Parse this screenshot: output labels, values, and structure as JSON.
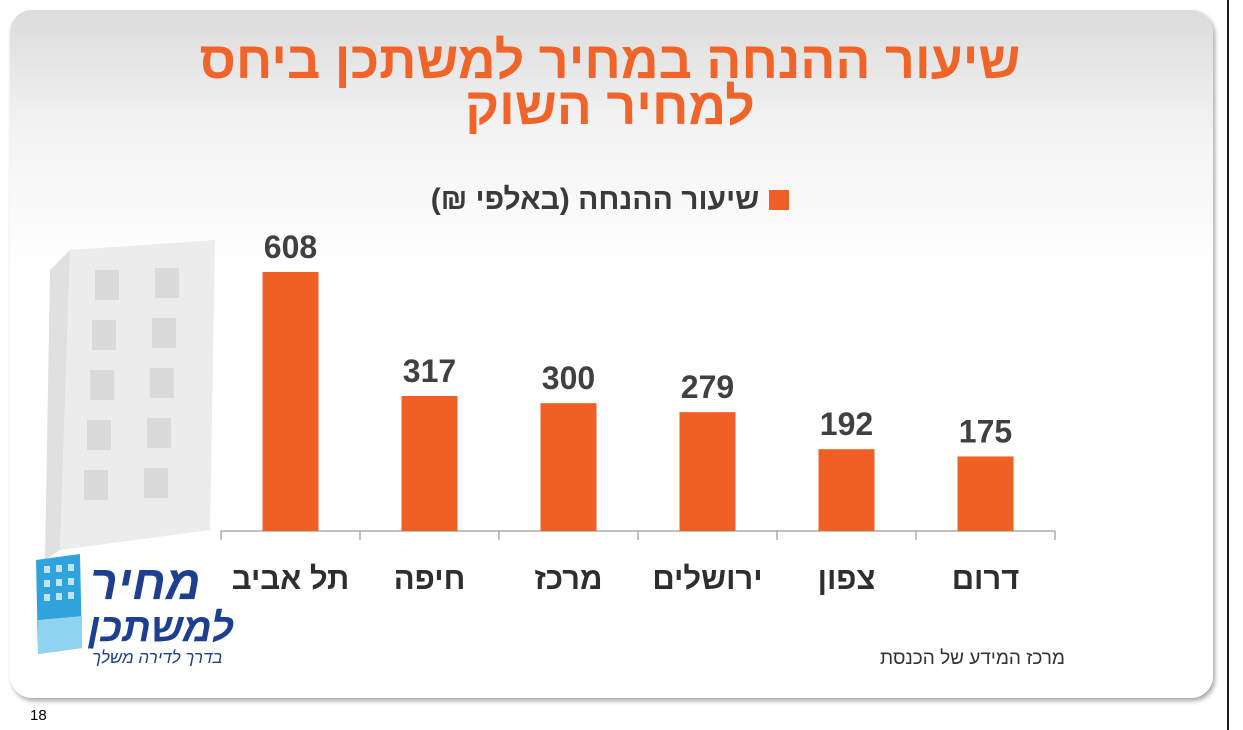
{
  "title_lines": [
    "שיעור ההנחה במחיר למשתכן ביחס",
    "למחיר השוק"
  ],
  "legend": {
    "label": "שיעור ההנחה (באלפי ₪)",
    "color": "#f05f24"
  },
  "source": "מרכז המידע של הכנסת",
  "page_number": "18",
  "logo": {
    "line1": "מחיר",
    "line2": "למשתכן",
    "tagline": "בדרך לדירה משלך"
  },
  "chart_data": {
    "type": "bar",
    "categories": [
      "תל אביב",
      "חיפה",
      "מרכז",
      "ירושלים",
      "צפון",
      "דרום"
    ],
    "series": [
      {
        "name": "שיעור ההנחה (באלפי ₪)",
        "values": [
          608,
          317,
          300,
          279,
          192,
          175
        ]
      }
    ],
    "ylim": [
      0,
      608
    ],
    "grid": false,
    "legend_position": "top",
    "data_labels": true,
    "bar_color": "#f05f24"
  }
}
